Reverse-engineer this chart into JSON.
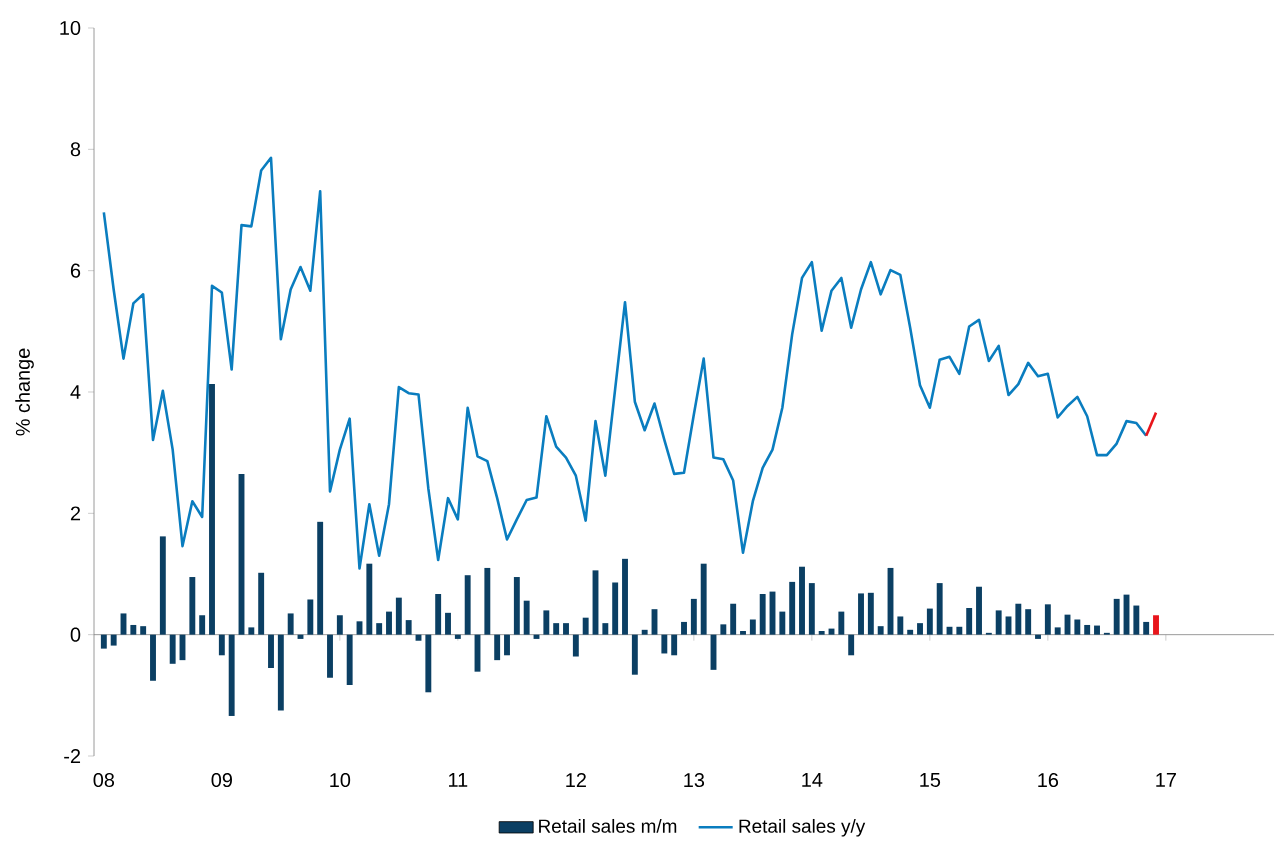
{
  "chart_data": {
    "type": "bar",
    "ylabel": "% change",
    "legend": "bottom",
    "marker": "none",
    "line_style": "solid",
    "x": [
      "2008-01",
      "2008-02",
      "2008-03",
      "2008-04",
      "2008-05",
      "2008-06",
      "2008-07",
      "2008-08",
      "2008-09",
      "2008-10",
      "2008-11",
      "2008-12",
      "2009-01",
      "2009-02",
      "2009-03",
      "2009-04",
      "2009-05",
      "2009-06",
      "2009-07",
      "2009-08",
      "2009-09",
      "2009-10",
      "2009-11",
      "2009-12",
      "2010-01",
      "2010-02",
      "2010-03",
      "2010-04",
      "2010-05",
      "2010-06",
      "2010-07",
      "2010-08",
      "2010-09",
      "2010-10",
      "2010-11",
      "2010-12",
      "2011-01",
      "2011-02",
      "2011-03",
      "2011-04",
      "2011-05",
      "2011-06",
      "2011-07",
      "2011-08",
      "2011-09",
      "2011-10",
      "2011-11",
      "2011-12",
      "2012-01",
      "2012-02",
      "2012-03",
      "2012-04",
      "2012-05",
      "2012-06",
      "2012-07",
      "2012-08",
      "2012-09",
      "2012-10",
      "2012-11",
      "2012-12",
      "2013-01",
      "2013-02",
      "2013-03",
      "2013-04",
      "2013-05",
      "2013-06",
      "2013-07",
      "2013-08",
      "2013-09",
      "2013-10",
      "2013-11",
      "2013-12",
      "2014-01",
      "2014-02",
      "2014-03",
      "2014-04",
      "2014-05",
      "2014-06",
      "2014-07",
      "2014-08",
      "2014-09",
      "2014-10",
      "2014-11",
      "2014-12",
      "2015-01",
      "2015-02",
      "2015-03",
      "2015-04",
      "2015-05",
      "2015-06",
      "2015-07",
      "2015-08",
      "2015-09",
      "2015-10",
      "2015-11",
      "2015-12",
      "2016-01",
      "2016-02",
      "2016-03",
      "2016-04",
      "2016-05",
      "2016-06",
      "2016-07",
      "2016-08",
      "2016-09",
      "2016-10",
      "2016-11",
      "2016-12"
    ],
    "series": [
      {
        "name": "Retail sales m/m",
        "type": "bar",
        "values": [
          -0.23,
          -0.18,
          0.35,
          0.16,
          0.14,
          -0.76,
          1.62,
          -0.48,
          -0.42,
          0.95,
          0.32,
          4.13,
          -0.34,
          -1.34,
          2.65,
          0.12,
          1.02,
          -0.55,
          -1.25,
          0.35,
          -0.07,
          0.58,
          1.86,
          -0.71,
          0.32,
          -0.83,
          0.22,
          1.17,
          0.19,
          0.38,
          0.61,
          0.24,
          -0.1,
          -0.95,
          0.67,
          0.36,
          -0.07,
          0.98,
          -0.61,
          1.1,
          -0.42,
          -0.34,
          0.95,
          0.56,
          -0.07,
          0.4,
          0.19,
          0.19,
          -0.36,
          0.28,
          1.06,
          0.19,
          0.86,
          1.25,
          -0.66,
          0.08,
          0.42,
          -0.31,
          -0.34,
          0.21,
          0.59,
          1.17,
          -0.58,
          0.17,
          0.51,
          0.06,
          0.25,
          0.67,
          0.71,
          0.38,
          0.87,
          1.12,
          0.85,
          0.06,
          0.1,
          0.38,
          -0.34,
          0.68,
          0.69,
          0.14,
          1.1,
          0.3,
          0.08,
          0.19,
          0.43,
          0.85,
          0.13,
          0.13,
          0.44,
          0.79,
          0.03,
          0.4,
          0.3,
          0.51,
          0.42,
          -0.07,
          0.5,
          0.12,
          0.33,
          0.25,
          0.16,
          0.15,
          0.03,
          0.59,
          0.66,
          0.48,
          0.21,
          0.32
        ],
        "colors": [
          "#0b3f63",
          "#0b3f63",
          "#0b3f63",
          "#0b3f63",
          "#0b3f63",
          "#0b3f63",
          "#0b3f63",
          "#0b3f63",
          "#0b3f63",
          "#0b3f63",
          "#0b3f63",
          "#0b3f63",
          "#0b3f63",
          "#0b3f63",
          "#0b3f63",
          "#0b3f63",
          "#0b3f63",
          "#0b3f63",
          "#0b3f63",
          "#0b3f63",
          "#0b3f63",
          "#0b3f63",
          "#0b3f63",
          "#0b3f63",
          "#0b3f63",
          "#0b3f63",
          "#0b3f63",
          "#0b3f63",
          "#0b3f63",
          "#0b3f63",
          "#0b3f63",
          "#0b3f63",
          "#0b3f63",
          "#0b3f63",
          "#0b3f63",
          "#0b3f63",
          "#0b3f63",
          "#0b3f63",
          "#0b3f63",
          "#0b3f63",
          "#0b3f63",
          "#0b3f63",
          "#0b3f63",
          "#0b3f63",
          "#0b3f63",
          "#0b3f63",
          "#0b3f63",
          "#0b3f63",
          "#0b3f63",
          "#0b3f63",
          "#0b3f63",
          "#0b3f63",
          "#0b3f63",
          "#0b3f63",
          "#0b3f63",
          "#0b3f63",
          "#0b3f63",
          "#0b3f63",
          "#0b3f63",
          "#0b3f63",
          "#0b3f63",
          "#0b3f63",
          "#0b3f63",
          "#0b3f63",
          "#0b3f63",
          "#0b3f63",
          "#0b3f63",
          "#0b3f63",
          "#0b3f63",
          "#0b3f63",
          "#0b3f63",
          "#0b3f63",
          "#0b3f63",
          "#0b3f63",
          "#0b3f63",
          "#0b3f63",
          "#0b3f63",
          "#0b3f63",
          "#0b3f63",
          "#0b3f63",
          "#0b3f63",
          "#0b3f63",
          "#0b3f63",
          "#0b3f63",
          "#0b3f63",
          "#0b3f63",
          "#0b3f63",
          "#0b3f63",
          "#0b3f63",
          "#0b3f63",
          "#0b3f63",
          "#0b3f63",
          "#0b3f63",
          "#0b3f63",
          "#0b3f63",
          "#0b3f63",
          "#0b3f63",
          "#0b3f63",
          "#0b3f63",
          "#0b3f63",
          "#0b3f63",
          "#0b3f63",
          "#0b3f63",
          "#0b3f63",
          "#0b3f63",
          "#0b3f63",
          "#0b3f63",
          "#e8151b"
        ]
      },
      {
        "name": "Retail sales y/y",
        "type": "line",
        "color": "#0a7dbf",
        "values": [
          6.96,
          5.69,
          4.55,
          5.46,
          5.61,
          3.21,
          4.02,
          3.05,
          1.46,
          2.2,
          1.94,
          5.75,
          5.64,
          4.37,
          6.75,
          6.73,
          7.65,
          7.86,
          4.87,
          5.69,
          6.06,
          5.67,
          7.31,
          2.36,
          3.05,
          3.56,
          1.09,
          2.15,
          1.3,
          2.15,
          4.08,
          3.98,
          3.96,
          2.41,
          1.23,
          2.25,
          1.9,
          3.74,
          2.94,
          2.86,
          2.25,
          1.57,
          1.9,
          2.22,
          2.26,
          3.6,
          3.1,
          2.92,
          2.62,
          1.88,
          3.52,
          2.62,
          4.05,
          5.48,
          3.84,
          3.37,
          3.81,
          3.21,
          2.65,
          2.67,
          3.63,
          4.55,
          2.92,
          2.89,
          2.54,
          1.35,
          2.2,
          2.75,
          3.05,
          3.74,
          4.95,
          5.88,
          6.14,
          5.01,
          5.67,
          5.88,
          5.06,
          5.69,
          6.14,
          5.61,
          6.01,
          5.93,
          5.06,
          4.11,
          3.74,
          4.53,
          4.58,
          4.3,
          5.08,
          5.19,
          4.51,
          4.76,
          3.95,
          4.13,
          4.48,
          4.26,
          4.3,
          3.58,
          3.77,
          3.92,
          3.6,
          2.96,
          2.96,
          3.15,
          3.52,
          3.49,
          3.28,
          null
        ]
      },
      {
        "type": "line",
        "color": "#e8151b",
        "values": [
          null,
          null,
          null,
          null,
          null,
          null,
          null,
          null,
          null,
          null,
          null,
          null,
          null,
          null,
          null,
          null,
          null,
          null,
          null,
          null,
          null,
          null,
          null,
          null,
          null,
          null,
          null,
          null,
          null,
          null,
          null,
          null,
          null,
          null,
          null,
          null,
          null,
          null,
          null,
          null,
          null,
          null,
          null,
          null,
          null,
          null,
          null,
          null,
          null,
          null,
          null,
          null,
          null,
          null,
          null,
          null,
          null,
          null,
          null,
          null,
          null,
          null,
          null,
          null,
          null,
          null,
          null,
          null,
          null,
          null,
          null,
          null,
          null,
          null,
          null,
          null,
          null,
          null,
          null,
          null,
          null,
          null,
          null,
          null,
          null,
          null,
          null,
          null,
          null,
          null,
          null,
          null,
          null,
          null,
          null,
          null,
          null,
          null,
          null,
          null,
          null,
          null,
          null,
          null,
          null,
          null,
          3.28,
          3.66
        ]
      }
    ],
    "xlim": [
      "2007-12",
      "2017-12"
    ],
    "xticks": [
      {
        "value": "2008-01",
        "label": "08"
      },
      {
        "value": "2009-01",
        "label": "09"
      },
      {
        "value": "2010-01",
        "label": "10"
      },
      {
        "value": "2011-01",
        "label": "11"
      },
      {
        "value": "2012-01",
        "label": "12"
      },
      {
        "value": "2013-01",
        "label": "13"
      },
      {
        "value": "2014-01",
        "label": "14"
      },
      {
        "value": "2015-01",
        "label": "15"
      },
      {
        "value": "2016-01",
        "label": "16"
      },
      {
        "value": "2017-01",
        "label": "17"
      }
    ],
    "ylim": [
      -2,
      10
    ],
    "yticks": [
      -2,
      0,
      2,
      4,
      6,
      8,
      10
    ]
  }
}
